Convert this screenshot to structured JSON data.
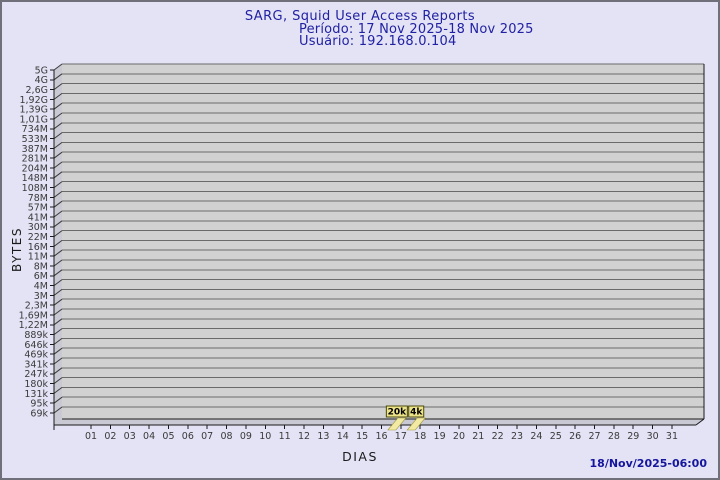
{
  "header": {
    "title": "SARG, Squid User Access Reports",
    "period": "Período: 17 Nov 2025-18 Nov 2025",
    "user": "Usuário: 192.168.0.104"
  },
  "footer": {
    "generated": "18/Nov/2025-06:00"
  },
  "chart_data": {
    "type": "bar",
    "title": "SARG, Squid User Access Reports",
    "subtitle_period": "Período: 17 Nov 2025-18 Nov 2025",
    "subtitle_user": "Usuário: 192.168.0.104",
    "xlabel": "DIAS",
    "ylabel": "BYTES",
    "y_scale": "logarithmic",
    "grid": "horizontal",
    "legend": "none",
    "y_tick_labels": [
      "5G",
      "4G",
      "2,6G",
      "1,92G",
      "1,39G",
      "1,01G",
      "734M",
      "533M",
      "387M",
      "281M",
      "204M",
      "148M",
      "108M",
      "78M",
      "57M",
      "41M",
      "30M",
      "22M",
      "16M",
      "11M",
      "8M",
      "6M",
      "4M",
      "3M",
      "2,3M",
      "1,69M",
      "1,22M",
      "889k",
      "646k",
      "469k",
      "341k",
      "247k",
      "180k",
      "131k",
      "95k",
      "69k"
    ],
    "x_tick_labels": [
      "01",
      "02",
      "03",
      "04",
      "05",
      "06",
      "07",
      "08",
      "09",
      "10",
      "11",
      "12",
      "13",
      "14",
      "15",
      "16",
      "17",
      "18",
      "19",
      "20",
      "21",
      "22",
      "23",
      "24",
      "25",
      "26",
      "27",
      "28",
      "29",
      "30",
      "31"
    ],
    "bars": [
      {
        "day": 17,
        "label": "20k",
        "bytes": 20000
      },
      {
        "day": 18,
        "label": "4k",
        "bytes": 4000
      }
    ],
    "colors": {
      "background": "#e3e3f5",
      "frame_border": "#70707a",
      "plot_bg": "#d1d1d1",
      "wall_bg": "#c9c9d3",
      "gridline": "#6a6a6a",
      "axis": "#1a1a1a",
      "diagonal_tick": "#3a3a3a",
      "title_text": "#2121a3",
      "tick_text": "#3a3a3a",
      "bar_fill": "#f2e9a2",
      "bar_stroke": "#a39a40",
      "value_box_bg": "#ede388",
      "value_box_border": "#4a4a10",
      "value_box_text": "#000000",
      "timestamp_text": "#15159d"
    }
  }
}
